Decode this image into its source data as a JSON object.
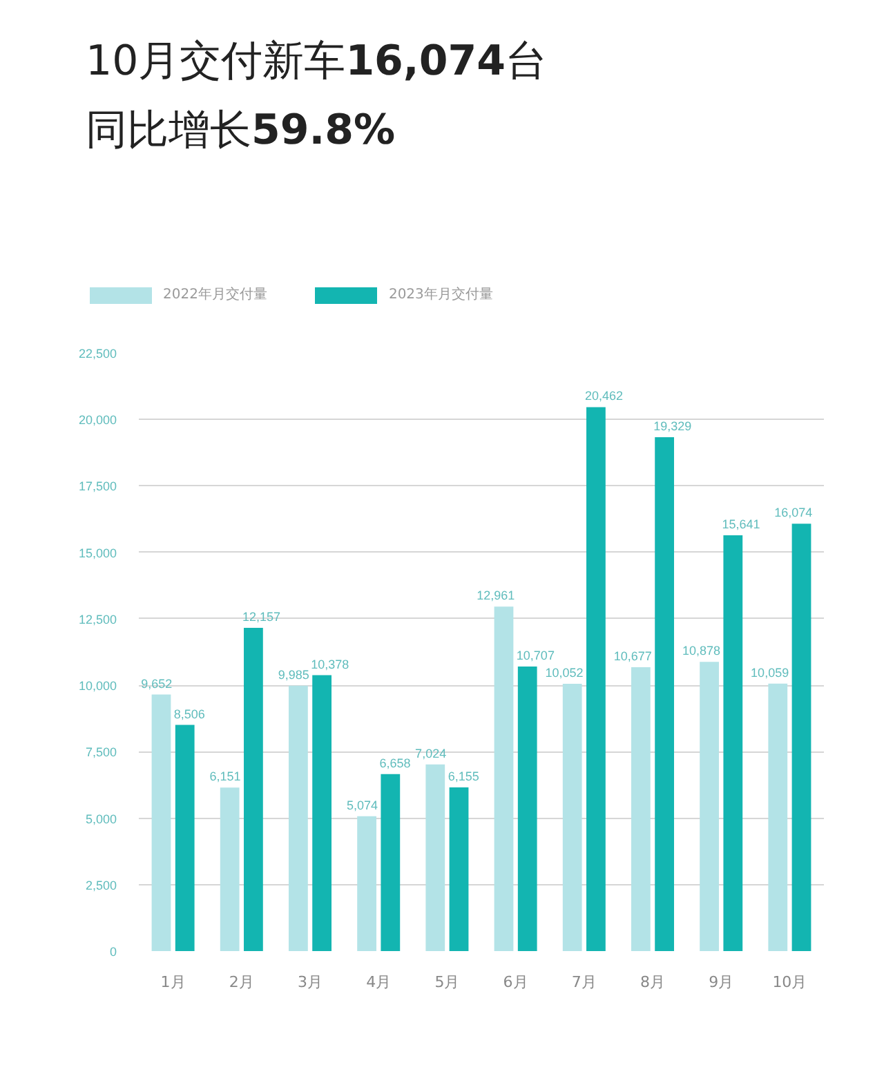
{
  "chart_data": {
    "type": "bar",
    "title": "10月交付新车16,074台",
    "subtitle": "同比增长59.8%",
    "categories": [
      "1月",
      "2月",
      "3月",
      "4月",
      "5月",
      "6月",
      "7月",
      "8月",
      "9月",
      "10月"
    ],
    "series": [
      {
        "name": "2022年月交付量",
        "color": "#b3e3e7",
        "values": [
          9652,
          6151,
          9985,
          5074,
          7024,
          12961,
          10052,
          10677,
          10878,
          10059
        ],
        "value_labels": [
          "9,652",
          "6,151",
          "9,985",
          "5,074",
          "7,024",
          "12,961",
          "10,052",
          "10,677",
          "10,878",
          "10,059"
        ]
      },
      {
        "name": "2023年月交付量",
        "color": "#13b5b1",
        "values": [
          8506,
          12157,
          10378,
          6658,
          6155,
          10707,
          20462,
          19329,
          15641,
          16074
        ],
        "value_labels": [
          "8,506",
          "12,157",
          "10,378",
          "6,658",
          "6,155",
          "10,707",
          "20,462",
          "19,329",
          "15,641",
          "16,074"
        ]
      }
    ],
    "ylim": [
      0,
      22500
    ],
    "yticks": [
      0,
      {
        "value": 2500,
        "label": "2,500"
      },
      {
        "value": 5000,
        "label": "5,000"
      },
      {
        "value": 7500,
        "label": "7,500"
      },
      {
        "value": 10000,
        "label": "10,000"
      },
      {
        "value": 12500,
        "label": "12,500"
      },
      {
        "value": 15000,
        "label": "15,000"
      },
      {
        "value": 17500,
        "label": "17,500"
      },
      {
        "value": 20000,
        "label": "20,000"
      },
      {
        "value": 22500,
        "label": "22,500"
      }
    ],
    "grid": "y",
    "legend": "top left"
  }
}
